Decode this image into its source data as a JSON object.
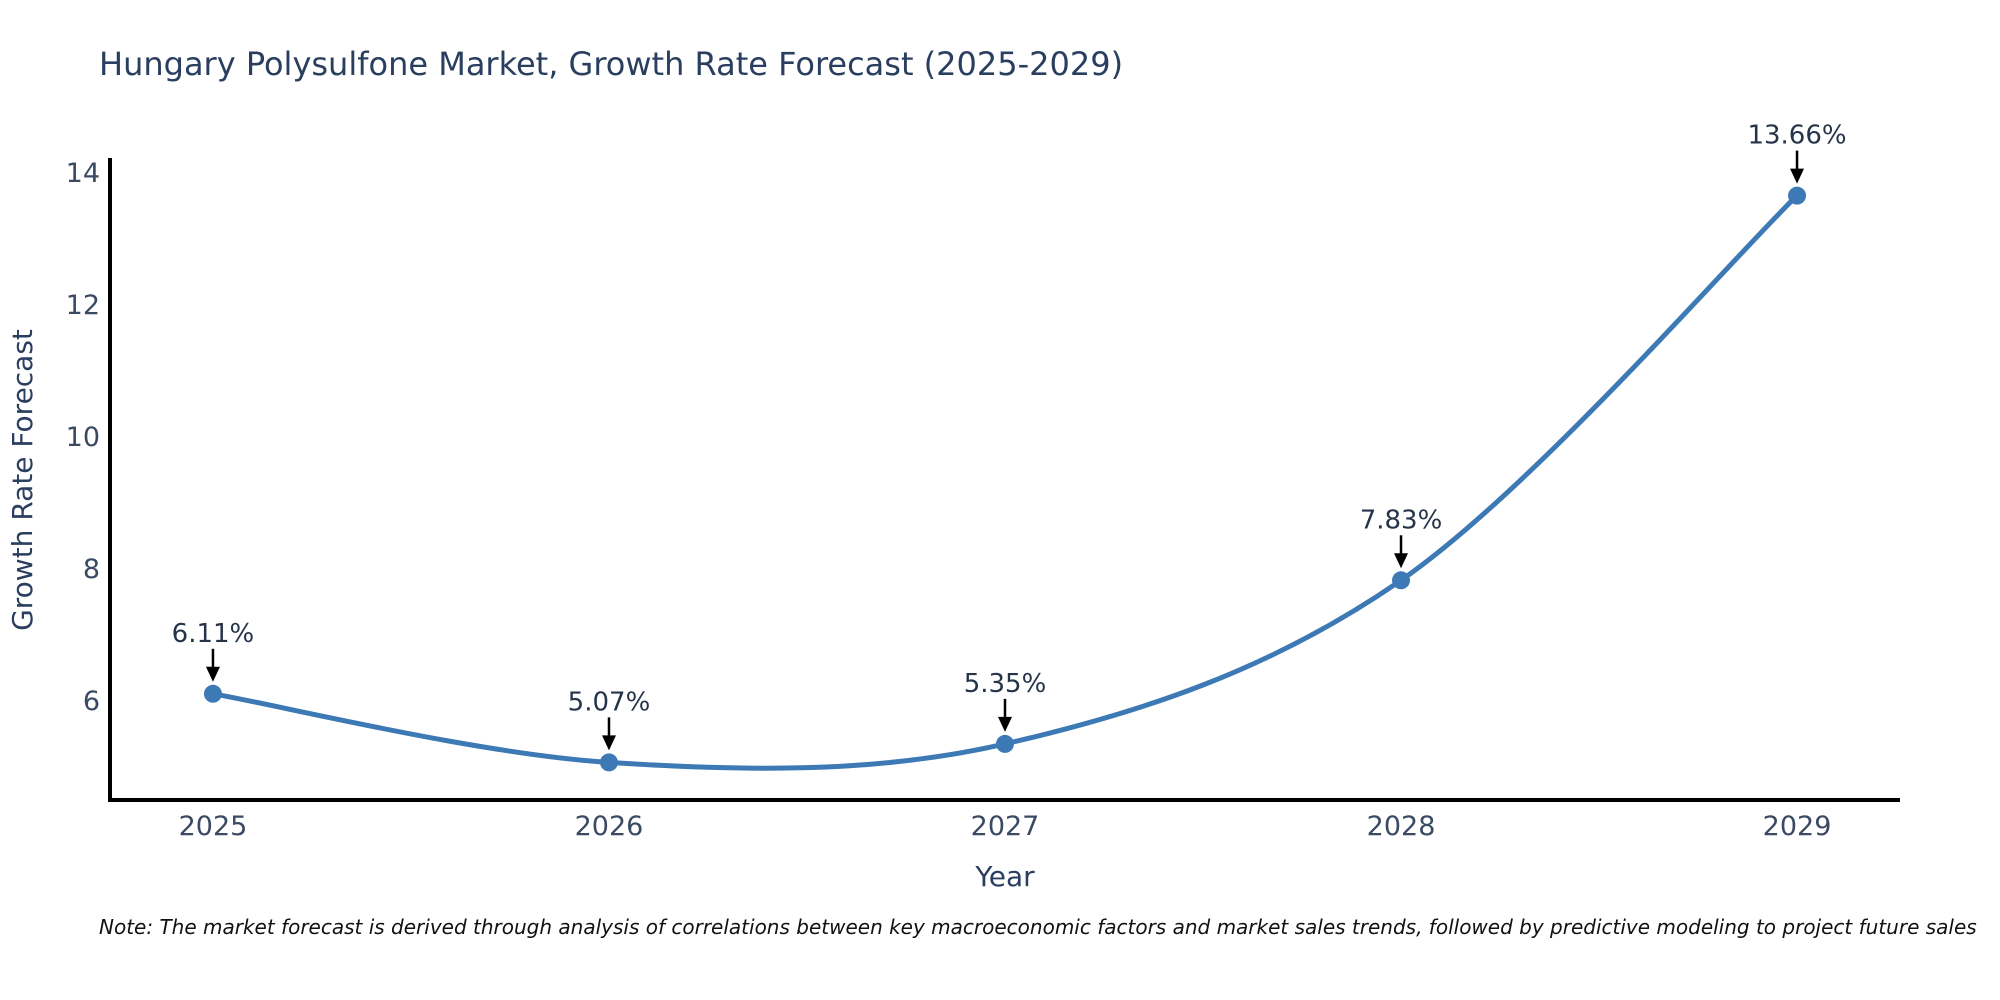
{
  "chart": {
    "title": "Hungary Polysulfone Market, Growth Rate Forecast (2025-2029)",
    "note": "Note: The market forecast is derived through analysis of correlations between key macroeconomic factors and market sales trends, followed by predictive modeling to project future sales"
  },
  "chart_data": {
    "type": "line",
    "line_shape": "spline",
    "title": "Hungary Polysulfone Market, Growth Rate Forecast (2025-2029)",
    "xlabel": "Year",
    "ylabel": "Growth Rate Forecast",
    "categories": [
      "2025",
      "2026",
      "2027",
      "2028",
      "2029"
    ],
    "x": [
      2025,
      2026,
      2027,
      2028,
      2029
    ],
    "values": [
      6.11,
      5.07,
      5.35,
      7.83,
      13.66
    ],
    "point_labels": [
      "6.11%",
      "5.07%",
      "5.35%",
      "7.83%",
      "13.66%"
    ],
    "yticks": [
      6,
      8,
      10,
      12,
      14
    ],
    "ylim": [
      4.5,
      14.2
    ],
    "xlim": [
      2024.74,
      2029.26
    ],
    "grid": false,
    "legend_position": "none",
    "annotations_arrows": true,
    "colors": {
      "line": "#3d7ab5",
      "marker": "#3d7ab5",
      "axis_line": "#000000",
      "arrow": "#000000",
      "title_text": "#2a3f5f",
      "tick_text": "#3b4a63",
      "note_text": "#111111"
    }
  }
}
